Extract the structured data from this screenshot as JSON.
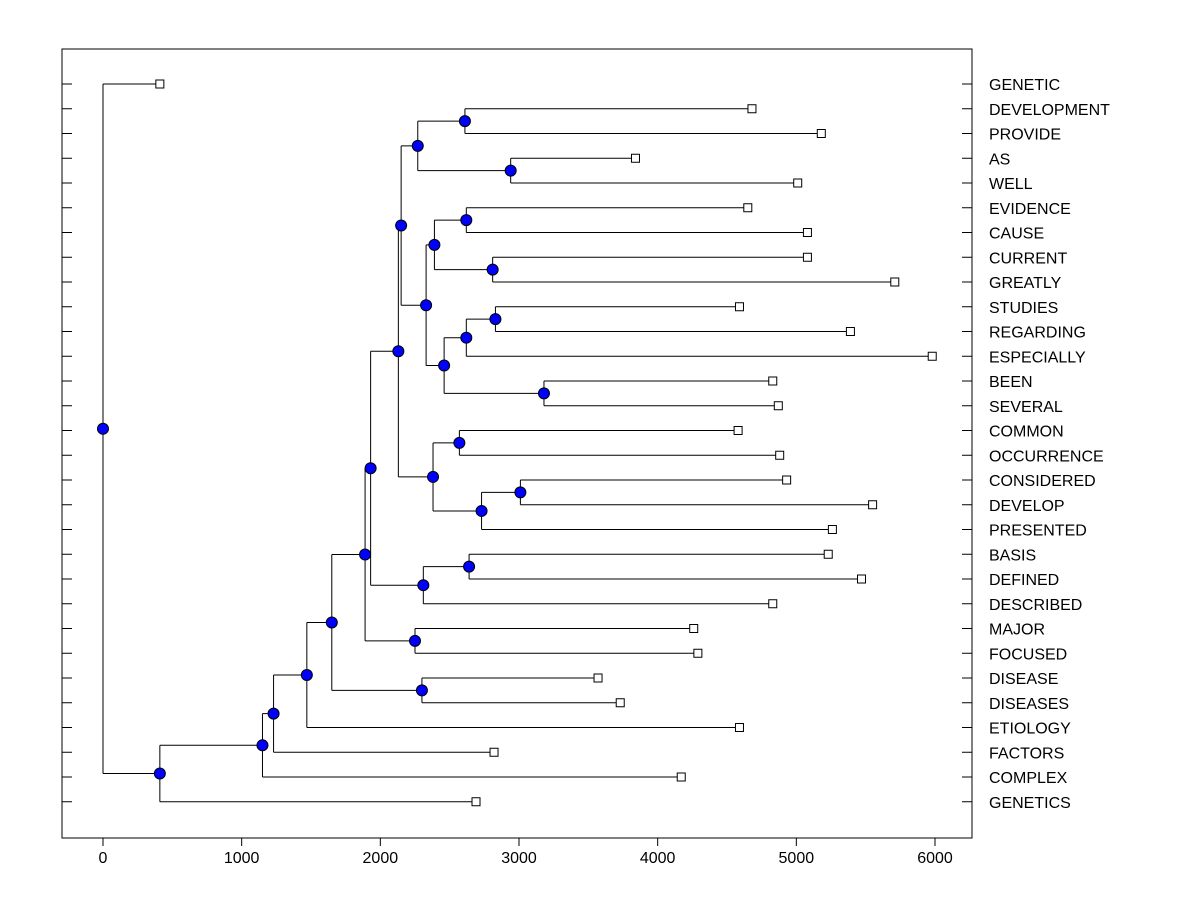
{
  "chart_data": {
    "type": "dendrogram",
    "title": "",
    "xlabel": "",
    "ylabel": "",
    "xlim": [
      -300,
      6300
    ],
    "xticks": [
      0,
      1000,
      2000,
      3000,
      4000,
      5000,
      6000
    ],
    "xtick_labels": [
      "0",
      "1000",
      "2000",
      "3000",
      "4000",
      "5000",
      "6000"
    ],
    "orientation": "left-to-right, leaf labels on right",
    "colors": {
      "node_fill": "#0000ff",
      "line": "#000000",
      "leaf_fill": "#ffffff"
    },
    "leaves": [
      {
        "label": "GENETIC",
        "x": 410
      },
      {
        "label": "DEVELOPMENT",
        "x": 4680
      },
      {
        "label": "PROVIDE",
        "x": 5180
      },
      {
        "label": "AS",
        "x": 3840
      },
      {
        "label": "WELL",
        "x": 5010
      },
      {
        "label": "EVIDENCE",
        "x": 4650
      },
      {
        "label": "CAUSE",
        "x": 5080
      },
      {
        "label": "CURRENT",
        "x": 5080
      },
      {
        "label": "GREATLY",
        "x": 5710
      },
      {
        "label": "STUDIES",
        "x": 4590
      },
      {
        "label": "REGARDING",
        "x": 5390
      },
      {
        "label": "ESPECIALLY",
        "x": 5980
      },
      {
        "label": "BEEN",
        "x": 4830
      },
      {
        "label": "SEVERAL",
        "x": 4870
      },
      {
        "label": "COMMON",
        "x": 4580
      },
      {
        "label": "OCCURRENCE",
        "x": 4880
      },
      {
        "label": "CONSIDERED",
        "x": 4930
      },
      {
        "label": "DEVELOP",
        "x": 5550
      },
      {
        "label": "PRESENTED",
        "x": 5260
      },
      {
        "label": "BASIS",
        "x": 5230
      },
      {
        "label": "DEFINED",
        "x": 5470
      },
      {
        "label": "DESCRIBED",
        "x": 4830
      },
      {
        "label": "MAJOR",
        "x": 4260
      },
      {
        "label": "FOCUSED",
        "x": 4290
      },
      {
        "label": "DISEASE",
        "x": 3570
      },
      {
        "label": "DISEASES",
        "x": 3730
      },
      {
        "label": "ETIOLOGY",
        "x": 4590
      },
      {
        "label": "FACTORS",
        "x": 2820
      },
      {
        "label": "COMPLEX",
        "x": 4170
      },
      {
        "label": "GENETICS",
        "x": 2690
      }
    ],
    "nodes": [
      {
        "id": "n1",
        "x": 2610,
        "children": [
          "L1",
          "L2"
        ]
      },
      {
        "id": "n2",
        "x": 2940,
        "children": [
          "L3",
          "L4"
        ]
      },
      {
        "id": "n3",
        "x": 2270,
        "children": [
          "n1",
          "n2"
        ]
      },
      {
        "id": "n4",
        "x": 2810,
        "children": [
          "L7",
          "L8"
        ]
      },
      {
        "id": "n5",
        "x": 2620,
        "children": [
          "L5",
          "L6"
        ]
      },
      {
        "id": "n6",
        "x": 2390,
        "children": [
          "n5",
          "n4"
        ]
      },
      {
        "id": "n7",
        "x": 2830,
        "children": [
          "L9",
          "L10"
        ]
      },
      {
        "id": "n8",
        "x": 2620,
        "children": [
          "n7",
          "L11"
        ]
      },
      {
        "id": "n9",
        "x": 3180,
        "children": [
          "L12",
          "L13"
        ]
      },
      {
        "id": "n10",
        "x": 2460,
        "children": [
          "n8",
          "n9"
        ]
      },
      {
        "id": "n11",
        "x": 2330,
        "children": [
          "n6",
          "n10"
        ]
      },
      {
        "id": "n12",
        "x": 2150,
        "children": [
          "n3",
          "n11"
        ]
      },
      {
        "id": "n13",
        "x": 2570,
        "children": [
          "L14",
          "L15"
        ]
      },
      {
        "id": "n14",
        "x": 3010,
        "children": [
          "L16",
          "L17"
        ]
      },
      {
        "id": "n15",
        "x": 2730,
        "children": [
          "n14",
          "L18"
        ]
      },
      {
        "id": "n16",
        "x": 2380,
        "children": [
          "n13",
          "n15"
        ]
      },
      {
        "id": "n17",
        "x": 2130,
        "children": [
          "n12",
          "n16"
        ]
      },
      {
        "id": "n18",
        "x": 2640,
        "children": [
          "L19",
          "L20"
        ]
      },
      {
        "id": "n19",
        "x": 2310,
        "children": [
          "n18",
          "L21"
        ]
      },
      {
        "id": "n20",
        "x": 1930,
        "children": [
          "n17",
          "n19"
        ]
      },
      {
        "id": "n21",
        "x": 2250,
        "children": [
          "L22",
          "L23"
        ]
      },
      {
        "id": "n22",
        "x": 1890,
        "children": [
          "n20",
          "n21"
        ]
      },
      {
        "id": "n23",
        "x": 2300,
        "children": [
          "L24",
          "L25"
        ]
      },
      {
        "id": "n24",
        "x": 1650,
        "children": [
          "n22",
          "n23"
        ]
      },
      {
        "id": "n25",
        "x": 1470,
        "children": [
          "n24",
          "L26"
        ]
      },
      {
        "id": "n26",
        "x": 1230,
        "children": [
          "n25",
          "L27"
        ]
      },
      {
        "id": "n27",
        "x": 1150,
        "children": [
          "n26",
          "L28"
        ]
      },
      {
        "id": "n28",
        "x": 410,
        "children": [
          "n27",
          "L29"
        ]
      },
      {
        "id": "n29",
        "x": 0,
        "children": [
          "L0",
          "n28"
        ]
      }
    ]
  }
}
